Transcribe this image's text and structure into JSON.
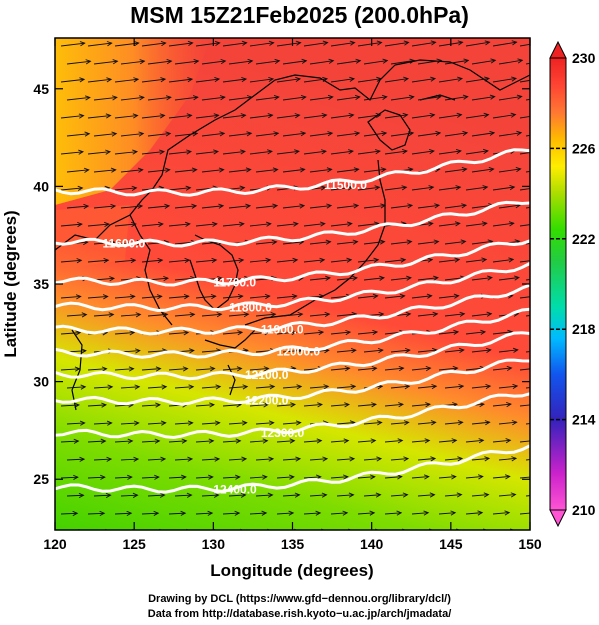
{
  "title": "MSM 15Z21Feb2025 (200.0hPa)",
  "x_axis": {
    "label": "Longitude (degrees)",
    "ticks": [
      120,
      125,
      130,
      135,
      140,
      145,
      150
    ],
    "range": [
      120,
      150
    ]
  },
  "y_axis": {
    "label": "Latitude  (degrees)",
    "ticks": [
      25,
      30,
      35,
      40,
      45
    ],
    "range": [
      22.4,
      47.6
    ]
  },
  "colorbar": {
    "ticks": [
      210,
      214,
      218,
      222,
      226,
      230
    ],
    "range": [
      210,
      230
    ],
    "colors": [
      "#ff55d4",
      "#cc22cc",
      "#3322bb",
      "#1155ee",
      "#00bbff",
      "#00ddaa",
      "#22cc44",
      "#33dd00",
      "#aadd00",
      "#ffee00",
      "#ffbb00",
      "#ff7733",
      "#ff4433",
      "#ee2222"
    ]
  },
  "contours": [
    {
      "value": "11500.0",
      "lat": 39.8
    },
    {
      "value": "11600.0",
      "lat": 37.2
    },
    {
      "value": "11700.0",
      "lat": 35.2
    },
    {
      "value": "11800.0",
      "lat": 33.9
    },
    {
      "value": "11900.0",
      "lat": 32.7
    },
    {
      "value": "12000.0",
      "lat": 31.5
    },
    {
      "value": "12100.0",
      "lat": 30.4
    },
    {
      "value": "12200.0",
      "lat": 29.1
    },
    {
      "value": "12300.0",
      "lat": 27.4
    },
    {
      "value": "12400.0",
      "lat": 24.6
    }
  ],
  "credits": {
    "line1": "Drawing by DCL (https://www.gfd−dennou.org/library/dcl/)",
    "line2": "Data from http://database.rish.kyoto−u.ac.jp/arch/jmadata/"
  }
}
